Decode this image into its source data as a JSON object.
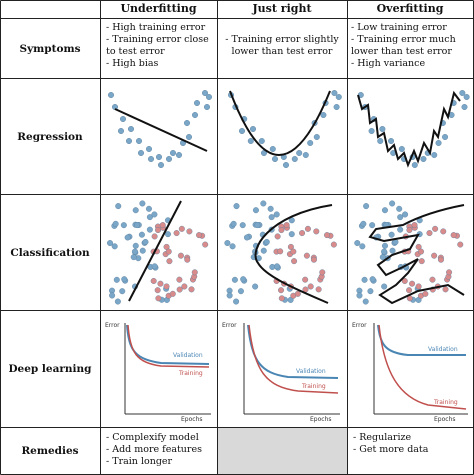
{
  "columns": [
    "Underfitting",
    "Just right",
    "Overfitting"
  ],
  "rows": [
    "Symptoms",
    "Regression",
    "Classification",
    "Deep learning",
    "Remedies"
  ],
  "symptoms": {
    "underfitting": [
      "- High training error",
      "- Training error close",
      "to test error",
      "- High bias"
    ],
    "just_right": [
      "- Training error slightly",
      "lower than test error"
    ],
    "overfitting": [
      "- Low training error",
      "- Training error much",
      "lower than test error",
      "- High variance"
    ]
  },
  "remedies": {
    "underfitting": [
      "- Complexify model",
      "- Add more features",
      "- Train longer"
    ],
    "just_right": [],
    "overfitting": [
      "- Regularize",
      "- Get more data"
    ]
  },
  "deep_learning": {
    "y_axis_label": "Error",
    "x_axis_label": "Epochs",
    "validation_label": "Validation",
    "training_label": "Training"
  },
  "colors": {
    "blue_points": "#7aa6c8",
    "red_points": "#d98a8a",
    "validation": "#4a86b4",
    "training": "#c0504d",
    "grey_fill": "#d9d9d9"
  }
}
